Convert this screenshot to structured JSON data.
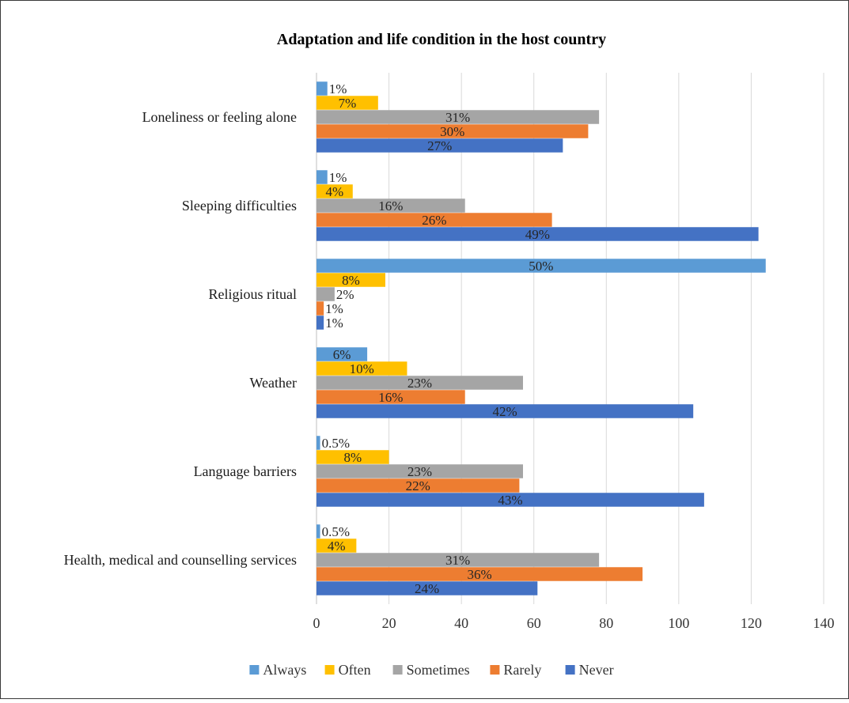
{
  "chart_data": {
    "type": "bar",
    "orientation": "horizontal",
    "title": "Adaptation and life condition in the host country",
    "categories": [
      "Loneliness or feeling alone",
      "Sleeping difficulties",
      "Religious ritual",
      "Weather",
      "Language barriers",
      "Health, medical and counselling services"
    ],
    "series": [
      {
        "name": "Always",
        "color": "#5B9BD5",
        "values": [
          3,
          3,
          124,
          14,
          1,
          1
        ],
        "labels": [
          "1%",
          "1%",
          "50%",
          "6%",
          "0.5%",
          "0.5%"
        ]
      },
      {
        "name": "Often",
        "color": "#FFC000",
        "values": [
          17,
          10,
          19,
          25,
          20,
          11
        ],
        "labels": [
          "7%",
          "4%",
          "8%",
          "10%",
          "8%",
          "4%"
        ]
      },
      {
        "name": "Sometimes",
        "color": "#A5A5A5",
        "values": [
          78,
          41,
          5,
          57,
          57,
          78
        ],
        "labels": [
          "31%",
          "16%",
          "2%",
          "23%",
          "23%",
          "31%"
        ]
      },
      {
        "name": "Rarely",
        "color": "#ED7D31",
        "values": [
          75,
          65,
          2,
          41,
          56,
          90
        ],
        "labels": [
          "30%",
          "26%",
          "1%",
          "16%",
          "22%",
          "36%"
        ]
      },
      {
        "name": "Never",
        "color": "#4472C4",
        "values": [
          68,
          122,
          2,
          104,
          107,
          61
        ],
        "labels": [
          "27%",
          "49%",
          "1%",
          "42%",
          "43%",
          "24%"
        ]
      }
    ],
    "xlim": [
      0,
      140
    ],
    "xticks": [
      0,
      20,
      40,
      60,
      80,
      100,
      120,
      140
    ],
    "grid": true,
    "legend": "bottom"
  }
}
